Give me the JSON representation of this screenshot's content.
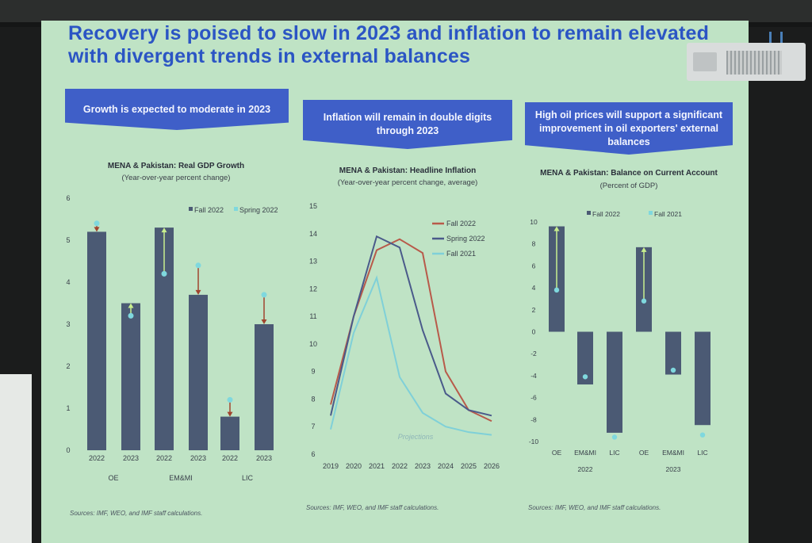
{
  "slide": {
    "title_line1": "Recovery is poised to slow in 2023 and inflation to remain elevated",
    "title_line2": "with divergent trends in external balances",
    "banners": [
      "Growth is expected to moderate in 2023",
      "Inflation will remain in double digits through 2023",
      "High oil prices will support a significant improvement in oil exporters' external balances"
    ],
    "sources": [
      "Sources: IMF, WEO, and IMF staff calculations.",
      "Sources: IMF, WEO, and IMF staff calculations.",
      "Sources: IMF, WEO, and IMF staff calculations."
    ]
  },
  "chart_data": [
    {
      "type": "bar",
      "title": "MENA & Pakistan: Real GDP Growth",
      "subtitle": "(Year-over-year percent change)",
      "categories": [
        "2022",
        "2023",
        "2022",
        "2023",
        "2022",
        "2023"
      ],
      "groups": [
        "OE",
        "EM&MI",
        "LIC"
      ],
      "ylim": [
        0,
        6
      ],
      "yticks": [
        "0",
        "1",
        "2",
        "3",
        "4",
        "5",
        "6"
      ],
      "legend": [
        "Fall 2022",
        "Spring 2022"
      ],
      "legend_position": "top-right",
      "series": [
        {
          "name": "Fall 2022",
          "values": [
            5.2,
            3.5,
            5.3,
            3.7,
            0.8,
            3.0
          ]
        },
        {
          "name": "Spring 2022",
          "values": [
            5.4,
            3.2,
            4.2,
            4.4,
            1.2,
            3.7
          ]
        }
      ],
      "colors": {
        "bars": "#4b5a74",
        "markers": "#7fd8de",
        "arrow_down": "#a0442e",
        "arrow_up": "#c9ef8e"
      }
    },
    {
      "type": "line",
      "title": "MENA & Pakistan: Headline Inflation",
      "subtitle": "(Year-over-year percent change, average)",
      "x": [
        "2019",
        "2020",
        "2021",
        "2022",
        "2023",
        "2024",
        "2025",
        "2026"
      ],
      "ylim": [
        6,
        15
      ],
      "yticks": [
        "6",
        "7",
        "8",
        "9",
        "10",
        "11",
        "12",
        "13",
        "14",
        "15"
      ],
      "annotation": "Projections",
      "legend_position": "top-right",
      "series": [
        {
          "name": "Fall 2022",
          "color": "#b85a4a",
          "values": [
            7.8,
            11.0,
            13.4,
            13.8,
            13.3,
            9.0,
            7.6,
            7.2
          ]
        },
        {
          "name": "Spring 2022",
          "color": "#4a5a8a",
          "values": [
            7.4,
            11.0,
            13.9,
            13.5,
            10.5,
            8.2,
            7.6,
            7.4
          ]
        },
        {
          "name": "Fall 2021",
          "color": "#7fd0d8",
          "values": [
            6.9,
            10.4,
            12.4,
            8.8,
            7.5,
            7.0,
            6.8,
            6.7
          ]
        }
      ]
    },
    {
      "type": "bar",
      "title": "MENA & Pakistan: Balance on Current Account",
      "subtitle": "(Percent of GDP)",
      "categories": [
        "OE",
        "EM&MI",
        "LIC",
        "OE",
        "EM&MI",
        "LIC"
      ],
      "groups": [
        "2022",
        "2023"
      ],
      "ylim": [
        -10,
        10
      ],
      "yticks": [
        "-10",
        "-8",
        "-6",
        "-4",
        "-2",
        "0",
        "2",
        "4",
        "6",
        "8",
        "10"
      ],
      "legend": [
        "Fall 2022",
        "Fall 2021"
      ],
      "legend_position": "top-right",
      "series": [
        {
          "name": "Fall 2022",
          "values": [
            9.6,
            -4.8,
            -9.2,
            7.7,
            -3.9,
            -8.5
          ]
        },
        {
          "name": "Fall 2021",
          "values": [
            3.8,
            -4.1,
            -9.6,
            2.8,
            -3.5,
            -9.4
          ]
        }
      ],
      "colors": {
        "bars": "#4b5a74",
        "markers": "#7fd8de",
        "arrow_up": "#c9ef8e"
      }
    }
  ]
}
